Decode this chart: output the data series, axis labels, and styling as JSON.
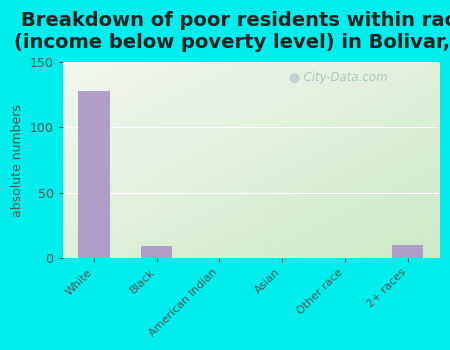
{
  "title": "Breakdown of poor residents within races\n(income below poverty level) in Bolivar, NY",
  "categories": [
    "White",
    "Black",
    "American Indian",
    "Asian",
    "Other race",
    "2+ races"
  ],
  "values": [
    128,
    9,
    0,
    0,
    0,
    10
  ],
  "bar_color": "#b09dc8",
  "ylabel": "absolute numbers",
  "ylim": [
    0,
    150
  ],
  "yticks": [
    0,
    50,
    100,
    150
  ],
  "bg_top_color": "#eef5e8",
  "bg_bottom_color": "#c8e8c8",
  "outer_bg_color": "#00eded",
  "watermark": "City-Data.com",
  "title_fontsize": 14,
  "title_color": "#222222",
  "tick_label_color": "#555555",
  "ylabel_color": "#555555"
}
